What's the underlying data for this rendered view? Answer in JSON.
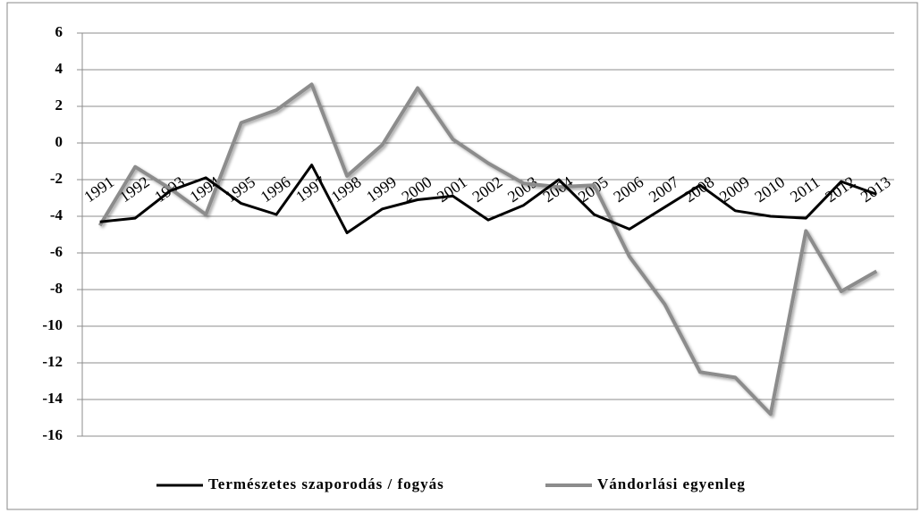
{
  "chart_data": {
    "type": "line",
    "categories": [
      "1991",
      "1992",
      "1993",
      "1994",
      "1995",
      "1996",
      "1997",
      "1998",
      "1999",
      "2000",
      "2001",
      "2002",
      "2003",
      "2004",
      "2005",
      "2006",
      "2007",
      "2008",
      "2009",
      "2010",
      "2011",
      "2012",
      "2013"
    ],
    "series": [
      {
        "name": "Természetes szaporodás / fogyás",
        "color": "#000000",
        "values": [
          -4.3,
          -4.1,
          -2.6,
          -1.9,
          -3.3,
          -3.9,
          -1.2,
          -4.9,
          -3.6,
          -3.1,
          -2.9,
          -4.2,
          -3.4,
          -2.0,
          -3.9,
          -4.7,
          -3.5,
          -2.3,
          -3.7,
          -4.0,
          -4.1,
          -2.1,
          -2.8
        ]
      },
      {
        "name": "Vándorlási egyenleg",
        "color": "#8c8c8c",
        "values": [
          -4.5,
          -1.3,
          -2.5,
          -3.9,
          1.1,
          1.8,
          3.2,
          -1.8,
          -0.1,
          3.0,
          0.2,
          -1.1,
          -2.2,
          -2.4,
          -2.3,
          -6.2,
          -8.8,
          -12.5,
          -12.8,
          -14.8,
          -4.8,
          -8.1,
          -7.0
        ]
      }
    ],
    "ylim": [
      -16,
      6
    ],
    "yticks": [
      -16,
      -14,
      -12,
      -10,
      -8,
      -6,
      -4,
      -2,
      0,
      2,
      4,
      6
    ],
    "grid": true,
    "legend": "bottom"
  }
}
